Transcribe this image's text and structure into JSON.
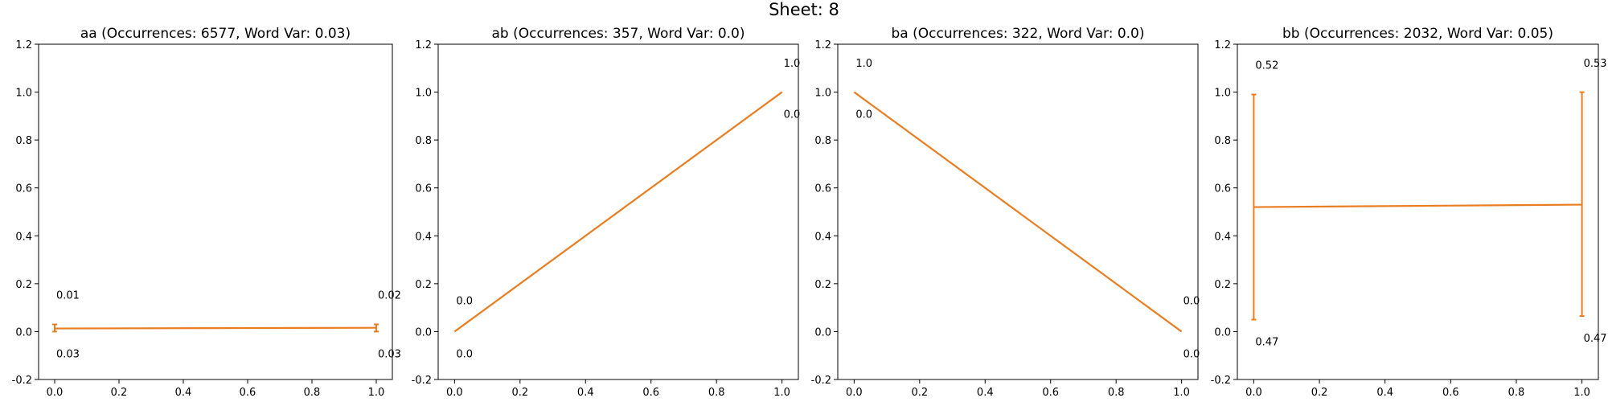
{
  "figure": {
    "suptitle": "Sheet: 8"
  },
  "colors": {
    "line": "#e87d22",
    "axis": "#000000",
    "background": "#ffffff"
  },
  "chart_data": [
    {
      "type": "line",
      "title": "aa (Occurrences: 6577, Word Var: 0.03)",
      "xlim": [
        -0.05,
        1.05
      ],
      "ylim": [
        -0.2,
        1.2
      ],
      "xticks": [
        "0.0",
        "0.2",
        "0.4",
        "0.6",
        "0.8",
        "1.0"
      ],
      "yticks": [
        "-0.2",
        "0.0",
        "0.2",
        "0.4",
        "0.6",
        "0.8",
        "1.0",
        "1.2"
      ],
      "x": [
        0,
        1
      ],
      "y": [
        0.013,
        0.016
      ],
      "error_low": [
        0.0,
        0.0
      ],
      "error_high": [
        0.03,
        0.03
      ],
      "upper_labels": [
        "0.01",
        "0.02"
      ],
      "lower_labels": [
        "0.03",
        "0.03"
      ],
      "grid": false
    },
    {
      "type": "line",
      "title": "ab (Occurrences: 357, Word Var: 0.0)",
      "xlim": [
        -0.05,
        1.05
      ],
      "ylim": [
        -0.2,
        1.2
      ],
      "xticks": [
        "0.0",
        "0.2",
        "0.4",
        "0.6",
        "0.8",
        "1.0"
      ],
      "yticks": [
        "-0.2",
        "0.0",
        "0.2",
        "0.4",
        "0.6",
        "0.8",
        "1.0",
        "1.2"
      ],
      "x": [
        0,
        1
      ],
      "y": [
        0.0,
        1.0
      ],
      "error_low": [
        0.0,
        1.0
      ],
      "error_high": [
        0.0,
        1.0
      ],
      "upper_labels": [
        "0.0",
        "1.0"
      ],
      "lower_labels": [
        "0.0",
        "0.0"
      ],
      "grid": false
    },
    {
      "type": "line",
      "title": "ba (Occurrences: 322, Word Var: 0.0)",
      "xlim": [
        -0.05,
        1.05
      ],
      "ylim": [
        -0.2,
        1.2
      ],
      "xticks": [
        "0.0",
        "0.2",
        "0.4",
        "0.6",
        "0.8",
        "1.0"
      ],
      "yticks": [
        "-0.2",
        "0.0",
        "0.2",
        "0.4",
        "0.6",
        "0.8",
        "1.0",
        "1.2"
      ],
      "x": [
        0,
        1
      ],
      "y": [
        1.0,
        0.0
      ],
      "error_low": [
        1.0,
        0.0
      ],
      "error_high": [
        1.0,
        0.0
      ],
      "upper_labels": [
        "1.0",
        "0.0"
      ],
      "lower_labels": [
        "0.0",
        "0.0"
      ],
      "grid": false
    },
    {
      "type": "line",
      "title": "bb (Occurrences: 2032, Word Var: 0.05)",
      "xlim": [
        -0.05,
        1.05
      ],
      "ylim": [
        -0.2,
        1.2
      ],
      "xticks": [
        "0.0",
        "0.2",
        "0.4",
        "0.6",
        "0.8",
        "1.0"
      ],
      "yticks": [
        "-0.2",
        "0.0",
        "0.2",
        "0.4",
        "0.6",
        "0.8",
        "1.0",
        "1.2"
      ],
      "x": [
        0,
        1
      ],
      "y": [
        0.52,
        0.53
      ],
      "error_low": [
        0.05,
        0.065
      ],
      "error_high": [
        0.99,
        1.0
      ],
      "upper_labels": [
        "0.52",
        "0.53"
      ],
      "lower_labels": [
        "0.47",
        "0.47"
      ],
      "grid": false
    }
  ]
}
